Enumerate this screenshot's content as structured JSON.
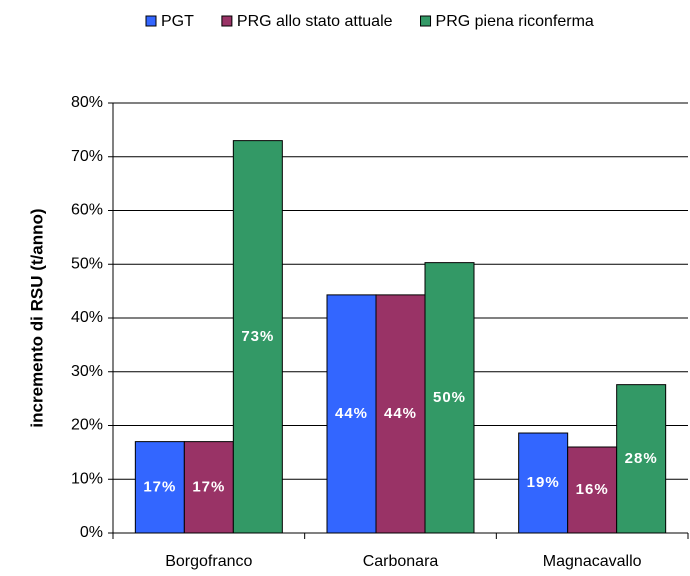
{
  "chart_data": {
    "type": "bar",
    "y_label": "incremento di RSU (t/anno)",
    "categories": [
      "Borgofranco",
      "Carbonara",
      "Magnacavallo"
    ],
    "series": [
      {
        "name": "PGT",
        "color": "#3366ff",
        "values": [
          17,
          44.3,
          18.6
        ],
        "value_labels": [
          "17%",
          "44%",
          "19%"
        ]
      },
      {
        "name": "PRG allo stato attuale",
        "color": "#993366",
        "values": [
          17,
          44.3,
          16
        ],
        "value_labels": [
          "17%",
          "44%",
          "16%"
        ]
      },
      {
        "name": "PRG piena riconferma",
        "color": "#339966",
        "values": [
          73,
          50.3,
          27.6
        ],
        "value_labels": [
          "73%",
          "50%",
          "28%"
        ]
      }
    ],
    "ylim": [
      0,
      80
    ],
    "yticks": [
      {
        "value": 0,
        "label": "0%"
      },
      {
        "value": 10,
        "label": "10%"
      },
      {
        "value": 20,
        "label": "20%"
      },
      {
        "value": 30,
        "label": "30%"
      },
      {
        "value": 40,
        "label": "40%"
      },
      {
        "value": 50,
        "label": "50%"
      },
      {
        "value": 60,
        "label": "60%"
      },
      {
        "value": 70,
        "label": "70%"
      },
      {
        "value": 80,
        "label": "80%"
      }
    ],
    "grid": true,
    "legend": "top"
  }
}
